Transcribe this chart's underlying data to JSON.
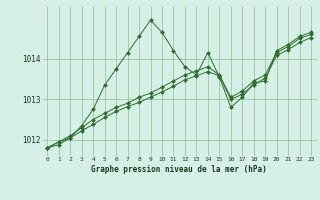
{
  "title": "Graphe pression niveau de la mer (hPa)",
  "background_color": "#d6f0e8",
  "line_color": "#2d6e2d",
  "marker_color": "#2d6e2d",
  "xlim": [
    -0.5,
    23.5
  ],
  "ylim": [
    1011.6,
    1015.3
  ],
  "yticks": [
    1012,
    1013,
    1014
  ],
  "xticks": [
    0,
    1,
    2,
    3,
    4,
    5,
    6,
    7,
    8,
    9,
    10,
    11,
    12,
    13,
    14,
    15,
    16,
    17,
    18,
    19,
    20,
    21,
    22,
    23
  ],
  "series": [
    [
      1011.8,
      1011.95,
      1012.05,
      1012.35,
      1012.75,
      1013.35,
      1013.75,
      1014.15,
      1014.55,
      1014.95,
      1014.65,
      1014.2,
      1013.8,
      1013.6,
      1014.15,
      1013.55,
      1012.8,
      1013.05,
      1013.4,
      1013.45,
      1014.2,
      1014.35,
      1014.55,
      1014.65
    ],
    [
      1011.8,
      1011.95,
      1012.1,
      1012.3,
      1012.5,
      1012.65,
      1012.8,
      1012.9,
      1013.05,
      1013.15,
      1013.3,
      1013.45,
      1013.6,
      1013.7,
      1013.8,
      1013.6,
      1013.05,
      1013.2,
      1013.45,
      1013.6,
      1014.15,
      1014.3,
      1014.5,
      1014.6
    ],
    [
      1011.8,
      1011.88,
      1012.05,
      1012.22,
      1012.38,
      1012.55,
      1012.7,
      1012.82,
      1012.92,
      1013.05,
      1013.18,
      1013.32,
      1013.48,
      1013.58,
      1013.68,
      1013.58,
      1013.0,
      1013.12,
      1013.35,
      1013.52,
      1014.08,
      1014.22,
      1014.4,
      1014.52
    ]
  ]
}
